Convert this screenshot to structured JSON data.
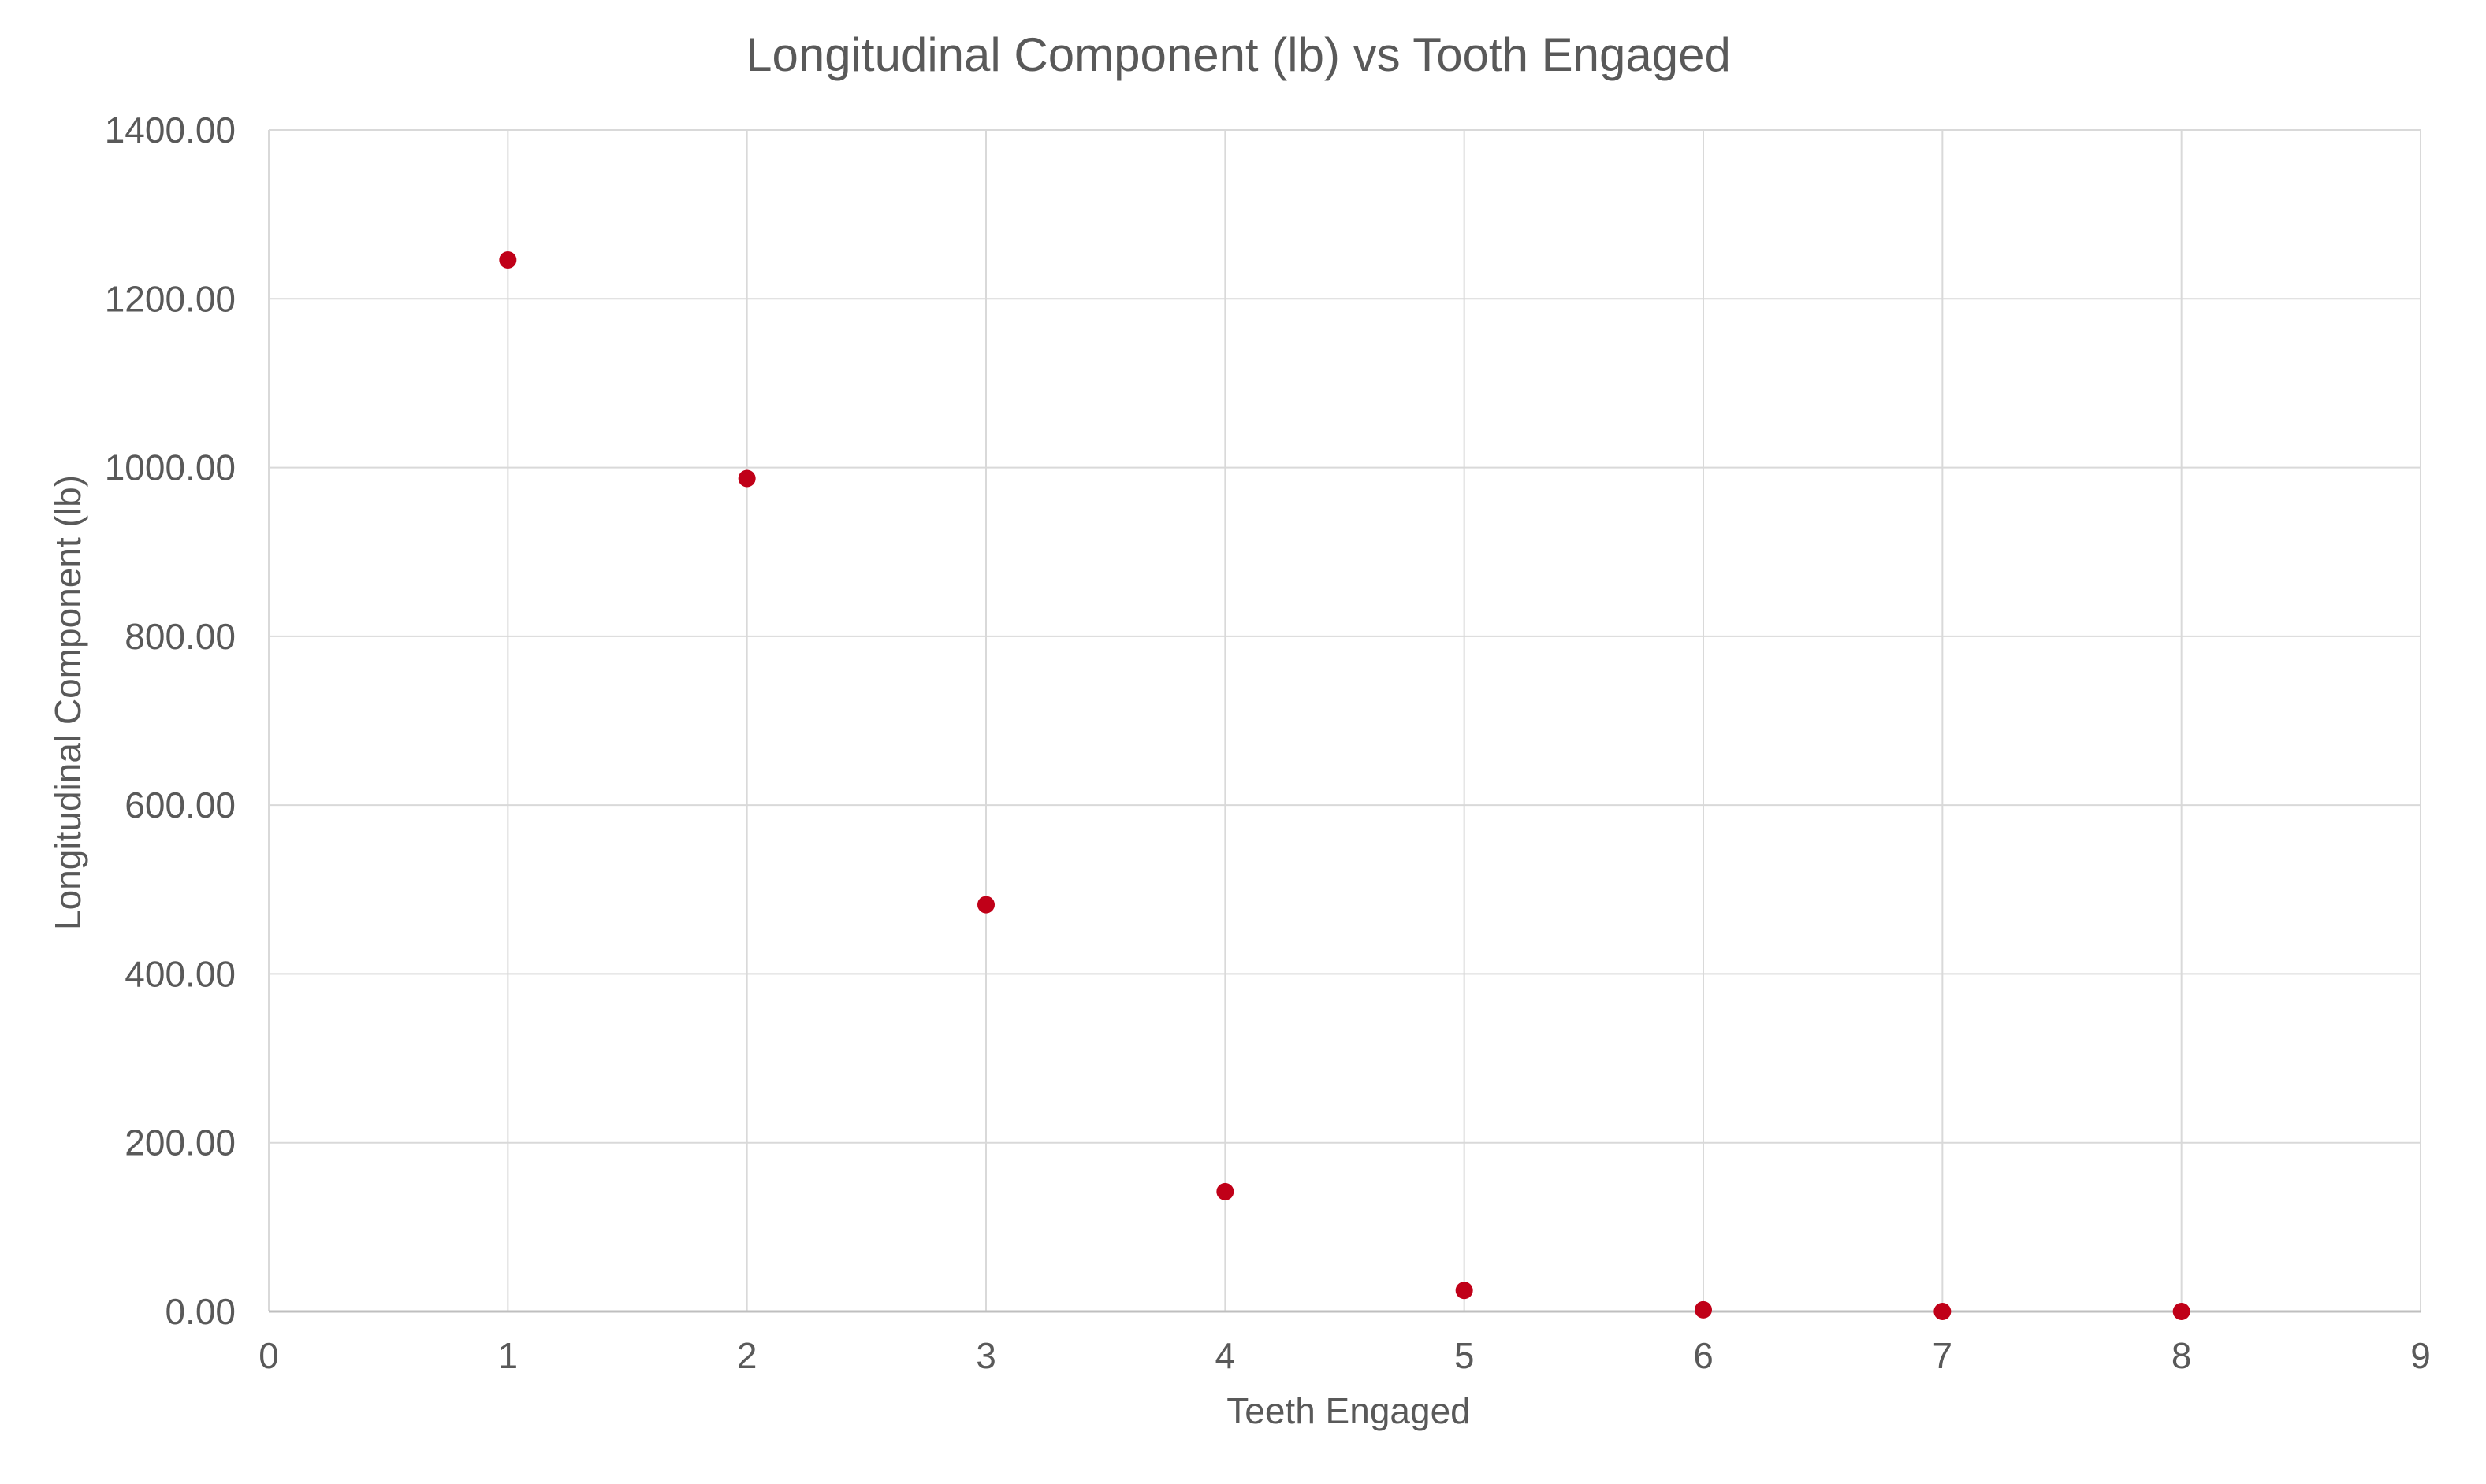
{
  "chart_data": {
    "type": "scatter",
    "title": "Longitudinal Component (lb) vs Tooth Engaged",
    "xlabel": "Teeth Engaged",
    "ylabel": "Longitudinal Component (lb)",
    "xlim": [
      0,
      9
    ],
    "ylim": [
      0,
      1400
    ],
    "x_ticks": [
      "0",
      "1",
      "2",
      "3",
      "4",
      "5",
      "6",
      "7",
      "8",
      "9"
    ],
    "y_ticks": [
      "0.00",
      "200.00",
      "400.00",
      "600.00",
      "800.00",
      "1000.00",
      "1200.00",
      "1400.00"
    ],
    "grid": true,
    "legend": "none",
    "marker_color": "#c00018",
    "gridline_color": "#d9d9d9",
    "axis_line_color": "#bfbfbf",
    "text_color": "#595959",
    "series": [
      {
        "x": [
          1,
          2,
          3,
          4,
          5,
          6,
          7,
          8
        ],
        "y": [
          1246,
          987,
          482,
          142,
          25,
          2,
          0,
          0
        ]
      }
    ]
  }
}
